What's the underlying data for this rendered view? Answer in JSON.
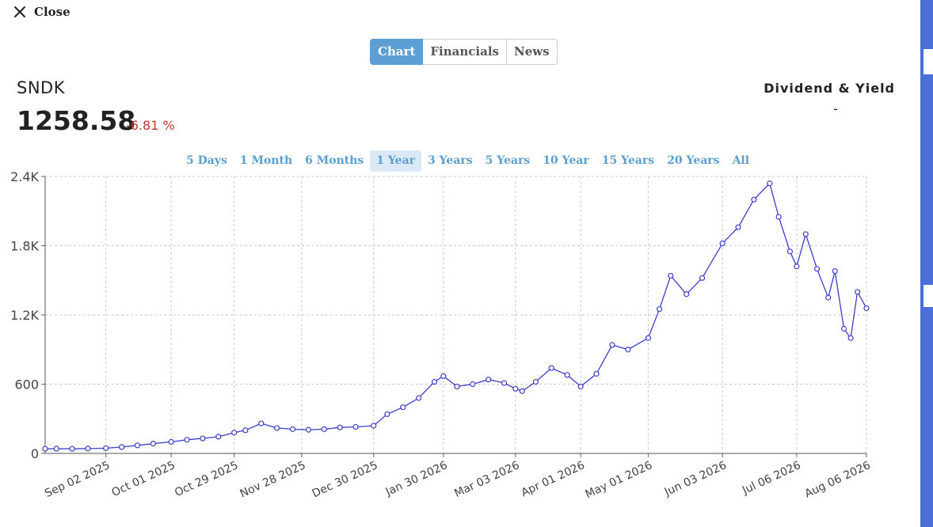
{
  "close_label": "Close",
  "tabs": [
    {
      "label": "Chart",
      "active": true
    },
    {
      "label": "Financials",
      "active": false
    },
    {
      "label": "News",
      "active": false
    }
  ],
  "quote": {
    "ticker": "SNDK",
    "price": "1258.58",
    "change": "-6.81 %"
  },
  "dividend": {
    "label": "Dividend & Yield",
    "value": "-"
  },
  "ranges": [
    {
      "label": "5 Days",
      "active": false
    },
    {
      "label": "1 Month",
      "active": false
    },
    {
      "label": "6 Months",
      "active": false
    },
    {
      "label": "1 Year",
      "active": true
    },
    {
      "label": "3 Years",
      "active": false
    },
    {
      "label": "5 Years",
      "active": false
    },
    {
      "label": "10 Year",
      "active": false
    },
    {
      "label": "15 Years",
      "active": false
    },
    {
      "label": "20 Years",
      "active": false
    },
    {
      "label": "All",
      "active": false
    }
  ],
  "colors": {
    "line": "#3b3fc9",
    "accent": "#5b9fd5",
    "negative": "#c0392b",
    "sidebar": "#4a6fd8"
  },
  "chart_data": {
    "type": "line",
    "x_type": "date",
    "x_start": "2025-08-06",
    "x_end": "2026-08-06",
    "ylim": [
      0,
      2400
    ],
    "yticks": [
      0,
      600,
      1200,
      1800,
      2400
    ],
    "ytick_labels": [
      "0",
      "600",
      "1.2K",
      "1.8K",
      "2.4K"
    ],
    "xticks": [
      "2025-09-02",
      "2025-10-01",
      "2025-10-29",
      "2025-11-28",
      "2025-12-30",
      "2026-01-30",
      "2026-03-03",
      "2026-04-01",
      "2026-05-01",
      "2026-06-03",
      "2026-07-06",
      "2026-08-06"
    ],
    "xtick_labels": [
      "Sep 02 2025",
      "Oct 01 2025",
      "Oct 29 2025",
      "Nov 28 2025",
      "Dec 30 2025",
      "Jan 30 2026",
      "Mar 03 2026",
      "Apr 01 2026",
      "May 01 2026",
      "Jun 03 2026",
      "Jul 06 2026",
      "Aug 06 2026"
    ],
    "grid": true,
    "series": [
      {
        "values": [
          [
            "2025-08-06",
            40
          ],
          [
            "2025-08-11",
            41
          ],
          [
            "2025-08-18",
            40
          ],
          [
            "2025-08-25",
            42
          ],
          [
            "2025-09-02",
            45
          ],
          [
            "2025-09-09",
            55
          ],
          [
            "2025-09-16",
            70
          ],
          [
            "2025-09-23",
            85
          ],
          [
            "2025-10-01",
            100
          ],
          [
            "2025-10-08",
            118
          ],
          [
            "2025-10-15",
            130
          ],
          [
            "2025-10-22",
            145
          ],
          [
            "2025-10-29",
            180
          ],
          [
            "2025-11-03",
            200
          ],
          [
            "2025-11-10",
            260
          ],
          [
            "2025-11-17",
            220
          ],
          [
            "2025-11-24",
            210
          ],
          [
            "2025-12-01",
            205
          ],
          [
            "2025-12-08",
            210
          ],
          [
            "2025-12-15",
            225
          ],
          [
            "2025-12-22",
            230
          ],
          [
            "2025-12-30",
            240
          ],
          [
            "2026-01-05",
            340
          ],
          [
            "2026-01-12",
            400
          ],
          [
            "2026-01-19",
            480
          ],
          [
            "2026-01-26",
            620
          ],
          [
            "2026-01-30",
            670
          ],
          [
            "2026-02-05",
            580
          ],
          [
            "2026-02-12",
            600
          ],
          [
            "2026-02-19",
            640
          ],
          [
            "2026-02-26",
            610
          ],
          [
            "2026-03-03",
            560
          ],
          [
            "2026-03-06",
            540
          ],
          [
            "2026-03-12",
            620
          ],
          [
            "2026-03-19",
            740
          ],
          [
            "2026-03-26",
            680
          ],
          [
            "2026-04-01",
            580
          ],
          [
            "2026-04-08",
            690
          ],
          [
            "2026-04-15",
            940
          ],
          [
            "2026-04-22",
            900
          ],
          [
            "2026-05-01",
            1000
          ],
          [
            "2026-05-06",
            1250
          ],
          [
            "2026-05-11",
            1540
          ],
          [
            "2026-05-18",
            1380
          ],
          [
            "2026-05-25",
            1520
          ],
          [
            "2026-06-03",
            1820
          ],
          [
            "2026-06-10",
            1960
          ],
          [
            "2026-06-17",
            2200
          ],
          [
            "2026-06-24",
            2340
          ],
          [
            "2026-06-28",
            2050
          ],
          [
            "2026-07-03",
            1750
          ],
          [
            "2026-07-06",
            1620
          ],
          [
            "2026-07-10",
            1900
          ],
          [
            "2026-07-15",
            1600
          ],
          [
            "2026-07-20",
            1350
          ],
          [
            "2026-07-23",
            1580
          ],
          [
            "2026-07-27",
            1080
          ],
          [
            "2026-07-30",
            1000
          ],
          [
            "2026-08-02",
            1400
          ],
          [
            "2026-08-06",
            1258
          ]
        ]
      }
    ]
  }
}
